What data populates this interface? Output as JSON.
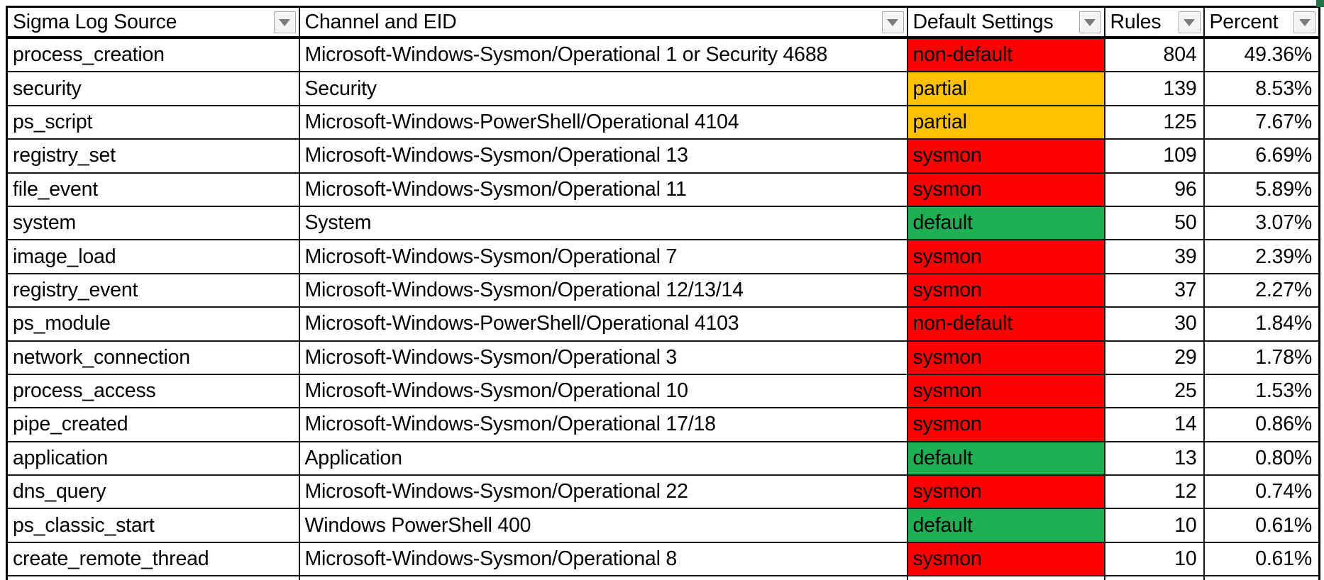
{
  "status_colors": {
    "red": "#FF0000",
    "orange": "#FFC000",
    "green": "#1EB053"
  },
  "selection_handle_color": "#217346",
  "table": {
    "columns": [
      {
        "id": "source",
        "label": "Sigma Log Source"
      },
      {
        "id": "channel",
        "label": "Channel and EID"
      },
      {
        "id": "setting",
        "label": "Default Settings"
      },
      {
        "id": "rules",
        "label": "Rules"
      },
      {
        "id": "percent",
        "label": "Percent"
      }
    ],
    "rows": [
      {
        "source": "process_creation",
        "channel": "Microsoft-Windows-Sysmon/Operational 1 or Security 4688",
        "setting": "non-default",
        "setting_color": "red",
        "rules": "804",
        "percent": "49.36%"
      },
      {
        "source": "security",
        "channel": "Security",
        "setting": "partial",
        "setting_color": "orange",
        "rules": "139",
        "percent": "8.53%"
      },
      {
        "source": "ps_script",
        "channel": "Microsoft-Windows-PowerShell/Operational 4104",
        "setting": "partial",
        "setting_color": "orange",
        "rules": "125",
        "percent": "7.67%"
      },
      {
        "source": "registry_set",
        "channel": "Microsoft-Windows-Sysmon/Operational 13",
        "setting": "sysmon",
        "setting_color": "red",
        "rules": "109",
        "percent": "6.69%"
      },
      {
        "source": "file_event",
        "channel": "Microsoft-Windows-Sysmon/Operational 11",
        "setting": "sysmon",
        "setting_color": "red",
        "rules": "96",
        "percent": "5.89%"
      },
      {
        "source": "system",
        "channel": "System",
        "setting": "default",
        "setting_color": "green",
        "rules": "50",
        "percent": "3.07%"
      },
      {
        "source": "image_load",
        "channel": "Microsoft-Windows-Sysmon/Operational 7",
        "setting": "sysmon",
        "setting_color": "red",
        "rules": "39",
        "percent": "2.39%"
      },
      {
        "source": "registry_event",
        "channel": "Microsoft-Windows-Sysmon/Operational 12/13/14",
        "setting": "sysmon",
        "setting_color": "red",
        "rules": "37",
        "percent": "2.27%"
      },
      {
        "source": "ps_module",
        "channel": "Microsoft-Windows-PowerShell/Operational 4103",
        "setting": "non-default",
        "setting_color": "red",
        "rules": "30",
        "percent": "1.84%"
      },
      {
        "source": "network_connection",
        "channel": "Microsoft-Windows-Sysmon/Operational 3",
        "setting": "sysmon",
        "setting_color": "red",
        "rules": "29",
        "percent": "1.78%"
      },
      {
        "source": "process_access",
        "channel": "Microsoft-Windows-Sysmon/Operational 10",
        "setting": "sysmon",
        "setting_color": "red",
        "rules": "25",
        "percent": "1.53%"
      },
      {
        "source": "pipe_created",
        "channel": "Microsoft-Windows-Sysmon/Operational 17/18",
        "setting": "sysmon",
        "setting_color": "red",
        "rules": "14",
        "percent": "0.86%"
      },
      {
        "source": "application",
        "channel": "Application",
        "setting": "default",
        "setting_color": "green",
        "rules": "13",
        "percent": "0.80%"
      },
      {
        "source": "dns_query",
        "channel": "Microsoft-Windows-Sysmon/Operational 22",
        "setting": "sysmon",
        "setting_color": "red",
        "rules": "12",
        "percent": "0.74%"
      },
      {
        "source": "ps_classic_start",
        "channel": "Windows PowerShell 400",
        "setting": "default",
        "setting_color": "green",
        "rules": "10",
        "percent": "0.61%"
      },
      {
        "source": "create_remote_thread",
        "channel": "Microsoft-Windows-Sysmon/Operational 8",
        "setting": "sysmon",
        "setting_color": "red",
        "rules": "10",
        "percent": "0.61%"
      }
    ]
  }
}
